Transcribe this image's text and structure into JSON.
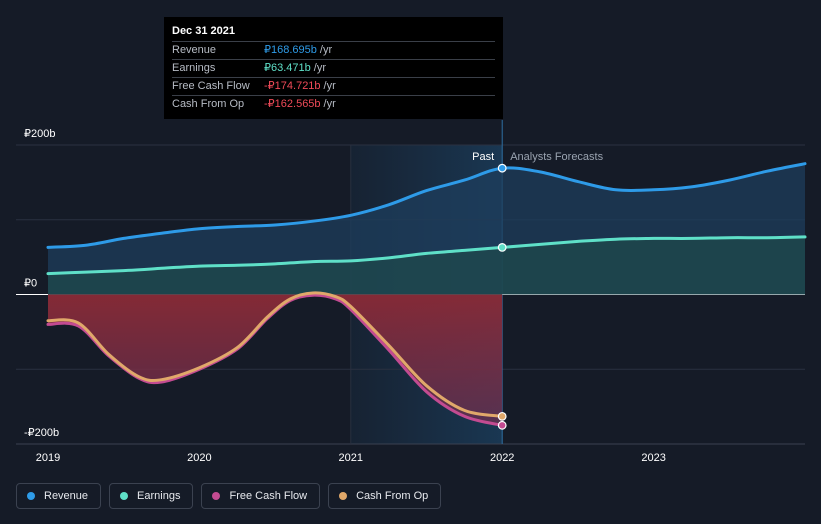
{
  "tooltip": {
    "date": "Dec 31 2021",
    "rows": [
      {
        "label": "Revenue",
        "value": "₽168.695b",
        "unit": "/yr",
        "color": "#2e9be8"
      },
      {
        "label": "Earnings",
        "value": "₽63.471b",
        "unit": "/yr",
        "color": "#5fe0c8"
      },
      {
        "label": "Free Cash Flow",
        "value": "-₽174.721b",
        "unit": "/yr",
        "color": "#ef4a58"
      },
      {
        "label": "Cash From Op",
        "value": "-₽162.565b",
        "unit": "/yr",
        "color": "#ef4a58"
      }
    ]
  },
  "periods": {
    "past": "Past",
    "forecast": "Analysts Forecasts"
  },
  "legend": [
    {
      "label": "Revenue",
      "color": "#2e9be8"
    },
    {
      "label": "Earnings",
      "color": "#5fe0c8"
    },
    {
      "label": "Free Cash Flow",
      "color": "#c34b91"
    },
    {
      "label": "Cash From Op",
      "color": "#e0a86a"
    }
  ],
  "chart_data": {
    "type": "area",
    "x_tick_labels": [
      "2019",
      "2020",
      "2021",
      "2022",
      "2023"
    ],
    "y_tick_labels": [
      "₽200b",
      "₽0",
      "-₽200b"
    ],
    "ylim": [
      -200,
      200
    ],
    "xlim": [
      2019.0,
      2024.0
    ],
    "past_end": 2022.0,
    "unit": "₽b",
    "series": [
      {
        "name": "Revenue",
        "color": "#2e9be8",
        "points": [
          [
            2019.0,
            63
          ],
          [
            2019.25,
            66
          ],
          [
            2019.5,
            75
          ],
          [
            2019.75,
            82
          ],
          [
            2020.0,
            88
          ],
          [
            2020.25,
            91
          ],
          [
            2020.5,
            93
          ],
          [
            2020.75,
            98
          ],
          [
            2021.0,
            106
          ],
          [
            2021.25,
            120
          ],
          [
            2021.5,
            139
          ],
          [
            2021.75,
            153
          ],
          [
            2022.0,
            169
          ],
          [
            2022.25,
            164
          ],
          [
            2022.5,
            151
          ],
          [
            2022.75,
            140
          ],
          [
            2023.0,
            140
          ],
          [
            2023.25,
            144
          ],
          [
            2023.5,
            153
          ],
          [
            2023.75,
            165
          ],
          [
            2024.0,
            175
          ]
        ]
      },
      {
        "name": "Earnings",
        "color": "#5fe0c8",
        "points": [
          [
            2019.0,
            28
          ],
          [
            2019.25,
            30
          ],
          [
            2019.5,
            32
          ],
          [
            2019.75,
            35
          ],
          [
            2020.0,
            38
          ],
          [
            2020.25,
            39
          ],
          [
            2020.5,
            41
          ],
          [
            2020.75,
            44
          ],
          [
            2021.0,
            45
          ],
          [
            2021.25,
            49
          ],
          [
            2021.5,
            55
          ],
          [
            2021.75,
            59
          ],
          [
            2022.0,
            63
          ],
          [
            2022.25,
            67
          ],
          [
            2022.5,
            71
          ],
          [
            2022.75,
            74
          ],
          [
            2023.0,
            75
          ],
          [
            2023.25,
            75
          ],
          [
            2023.5,
            76
          ],
          [
            2023.75,
            76
          ],
          [
            2024.0,
            77
          ]
        ]
      },
      {
        "name": "Free Cash Flow",
        "color": "#c34b91",
        "points": [
          [
            2019.0,
            -40
          ],
          [
            2019.2,
            -42
          ],
          [
            2019.4,
            -82
          ],
          [
            2019.6,
            -112
          ],
          [
            2019.75,
            -117
          ],
          [
            2020.0,
            -100
          ],
          [
            2020.25,
            -73
          ],
          [
            2020.45,
            -32
          ],
          [
            2020.6,
            -8
          ],
          [
            2020.75,
            -1
          ],
          [
            2020.9,
            -6
          ],
          [
            2021.0,
            -20
          ],
          [
            2021.25,
            -74
          ],
          [
            2021.5,
            -130
          ],
          [
            2021.75,
            -163
          ],
          [
            2022.0,
            -175
          ]
        ]
      },
      {
        "name": "Cash From Op",
        "color": "#e0a86a",
        "points": [
          [
            2019.0,
            -35
          ],
          [
            2019.2,
            -38
          ],
          [
            2019.4,
            -80
          ],
          [
            2019.6,
            -110
          ],
          [
            2019.75,
            -114
          ],
          [
            2020.0,
            -98
          ],
          [
            2020.25,
            -71
          ],
          [
            2020.45,
            -30
          ],
          [
            2020.6,
            -6
          ],
          [
            2020.75,
            2
          ],
          [
            2020.9,
            -3
          ],
          [
            2021.0,
            -16
          ],
          [
            2021.25,
            -68
          ],
          [
            2021.5,
            -122
          ],
          [
            2021.75,
            -155
          ],
          [
            2022.0,
            -163
          ]
        ]
      }
    ]
  }
}
